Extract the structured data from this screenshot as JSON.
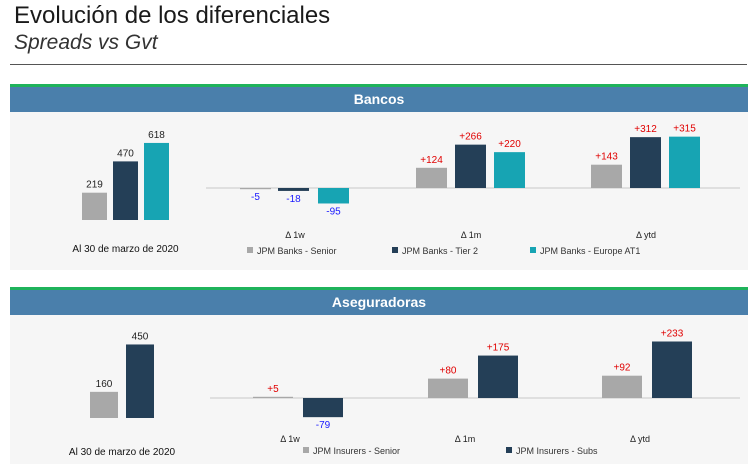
{
  "page": {
    "title": "Evolución de los diferenciales",
    "subtitle": "Spreads vs Gvt"
  },
  "colors": {
    "senior": "#a8a8a8",
    "tier2": "#243f57",
    "at1": "#17a4b3",
    "positive": "#e00000",
    "negative": "#1a1aff",
    "header": "#4a7fab",
    "accent": "#1fb35b"
  },
  "chart_data": [
    {
      "type": "bar",
      "title": "Bancos",
      "level_label": "Al 30 de marzo de 2020",
      "series_names": [
        "JPM Banks - Senior",
        "JPM Banks - Tier 2",
        "JPM Banks - Europe AT1"
      ],
      "levels": [
        219,
        470,
        618
      ],
      "level_labels": [
        "219",
        "470",
        "618"
      ],
      "categories": [
        "Δ 1w",
        "Δ 1m",
        "Δ ytd"
      ],
      "series": [
        {
          "name": "JPM Banks - Senior",
          "values": [
            -5,
            124,
            143
          ],
          "labels": [
            "-5",
            "+124",
            "+143"
          ]
        },
        {
          "name": "JPM Banks - Tier 2",
          "values": [
            -18,
            266,
            312
          ],
          "labels": [
            "-18",
            "+266",
            "+312"
          ]
        },
        {
          "name": "JPM Banks - Europe AT1",
          "values": [
            -95,
            220,
            315
          ],
          "labels": [
            "-95",
            "+220",
            "+315"
          ]
        }
      ]
    },
    {
      "type": "bar",
      "title": "Aseguradoras",
      "level_label": "Al 30 de marzo de 2020",
      "series_names": [
        "JPM Insurers - Senior",
        "JPM Insurers - Subs"
      ],
      "levels": [
        160,
        450
      ],
      "level_labels": [
        "160",
        "450"
      ],
      "categories": [
        "Δ 1w",
        "Δ 1m",
        "Δ ytd"
      ],
      "series": [
        {
          "name": "JPM Insurers - Senior",
          "values": [
            5,
            80,
            92
          ],
          "labels": [
            "+5",
            "+80",
            "+92"
          ]
        },
        {
          "name": "JPM Insurers - Subs",
          "values": [
            -79,
            175,
            233
          ],
          "labels": [
            "-79",
            "+175",
            "+233"
          ]
        }
      ]
    }
  ]
}
